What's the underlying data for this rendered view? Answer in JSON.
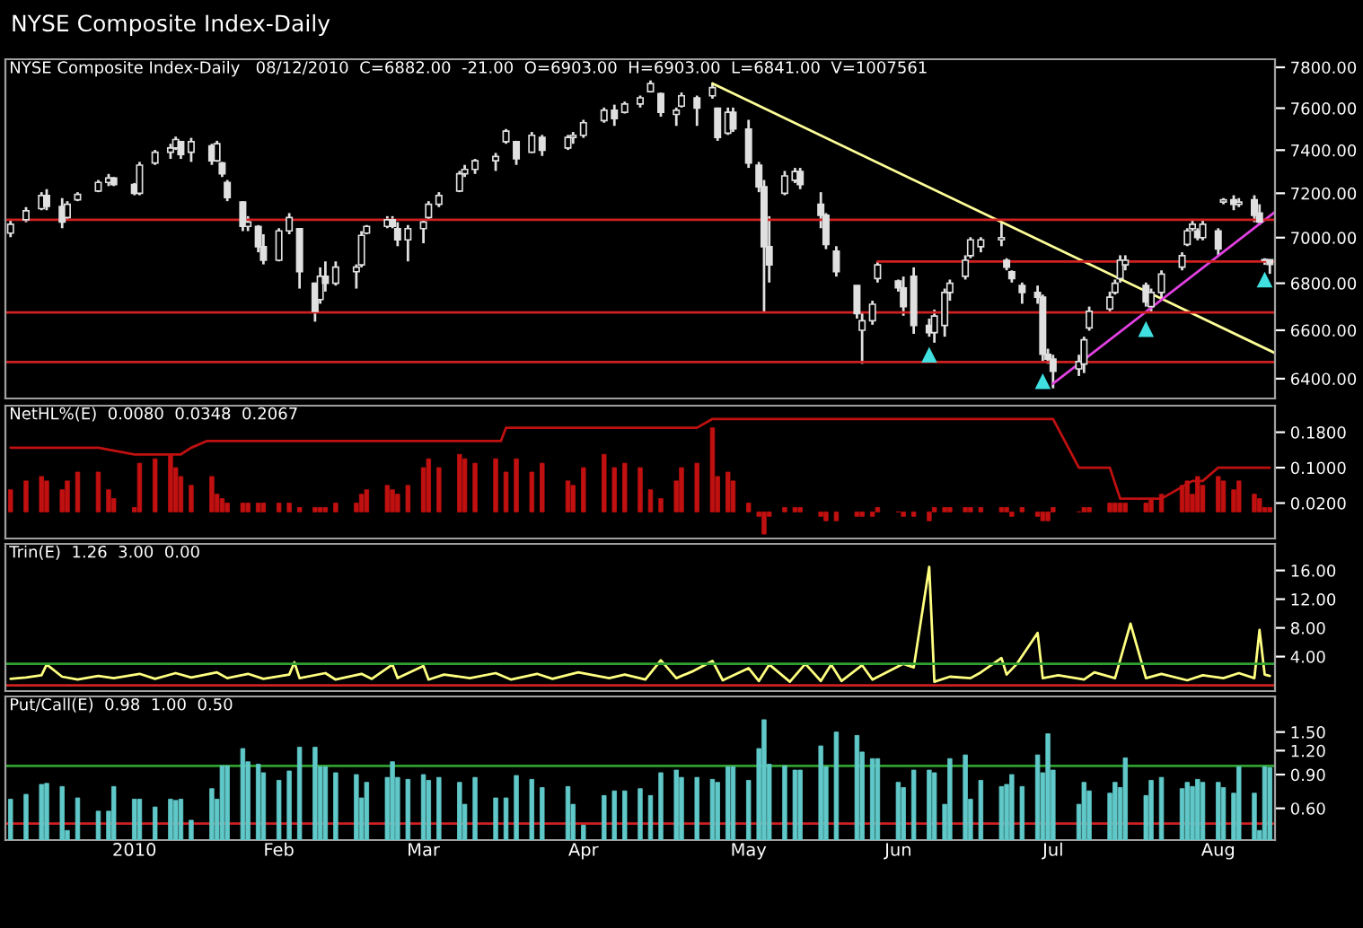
{
  "chart_data": [
    {
      "type": "candlestick",
      "title": "NYSE Composite Index-Daily",
      "subtitle": "NYSE Composite Index-Daily   08/12/2010  C=6882.00  -21.00  O=6903.00  H=6903.00  L=6841.00  V=1007561",
      "color": "#e0e0e0",
      "x": [
        "2009-12-11",
        "2009-12-14",
        "2009-12-17",
        "2009-12-18",
        "2009-12-21",
        "2009-12-22",
        "2009-12-24",
        "2009-12-28",
        "2009-12-30",
        "2009-12-31",
        "2010-01-04",
        "2010-01-05",
        "2010-01-08",
        "2010-01-11",
        "2010-01-12",
        "2010-01-13",
        "2010-01-15",
        "2010-01-19",
        "2010-01-20",
        "2010-01-21",
        "2010-01-22",
        "2010-01-25",
        "2010-01-26",
        "2010-01-28",
        "2010-01-29",
        "2010-02-01",
        "2010-02-03",
        "2010-02-05",
        "2010-02-08",
        "2010-02-09",
        "2010-02-10",
        "2010-02-12",
        "2010-02-16",
        "2010-02-17",
        "2010-02-18",
        "2010-02-22",
        "2010-02-23",
        "2010-02-24",
        "2010-02-26",
        "2010-03-01",
        "2010-03-02",
        "2010-03-04",
        "2010-03-08",
        "2010-03-09",
        "2010-03-11",
        "2010-03-15",
        "2010-03-17",
        "2010-03-19",
        "2010-03-22",
        "2010-03-24",
        "2010-03-29",
        "2010-03-30",
        "2010-04-01",
        "2010-04-05",
        "2010-04-07",
        "2010-04-09",
        "2010-04-12",
        "2010-04-14",
        "2010-04-16",
        "2010-04-19",
        "2010-04-20",
        "2010-04-23",
        "2010-04-26",
        "2010-04-27",
        "2010-04-29",
        "2010-04-30",
        "2010-05-03",
        "2010-05-05",
        "2010-05-06",
        "2010-05-07",
        "2010-05-10",
        "2010-05-12",
        "2010-05-13",
        "2010-05-17",
        "2010-05-18",
        "2010-05-20",
        "2010-05-24",
        "2010-05-25",
        "2010-05-27",
        "2010-05-28",
        "2010-06-01",
        "2010-06-02",
        "2010-06-04",
        "2010-06-07",
        "2010-06-08",
        "2010-06-10",
        "2010-06-11",
        "2010-06-14",
        "2010-06-15",
        "2010-06-17",
        "2010-06-21",
        "2010-06-22",
        "2010-06-23",
        "2010-06-25",
        "2010-06-28",
        "2010-06-29",
        "2010-06-30",
        "2010-07-01",
        "2010-07-06",
        "2010-07-07",
        "2010-07-08",
        "2010-07-12",
        "2010-07-13",
        "2010-07-14",
        "2010-07-15",
        "2010-07-19",
        "2010-07-20",
        "2010-07-22",
        "2010-07-26",
        "2010-07-27",
        "2010-07-28",
        "2010-07-29",
        "2010-07-30",
        "2010-08-02",
        "2010-08-03",
        "2010-08-05",
        "2010-08-06",
        "2010-08-09",
        "2010-08-10",
        "2010-08-11",
        "2010-08-12"
      ],
      "ohlc": [
        [
          7020,
          7083,
          7002,
          7060
        ],
        [
          7080,
          7137,
          7069,
          7120
        ],
        [
          7130,
          7205,
          7123,
          7190
        ],
        [
          7190,
          7219,
          7123,
          7140
        ],
        [
          7140,
          7178,
          7042,
          7070
        ],
        [
          7090,
          7164,
          7083,
          7150
        ],
        [
          7170,
          7205,
          7164,
          7195
        ],
        [
          7210,
          7261,
          7205,
          7250
        ],
        [
          7250,
          7289,
          7233,
          7270
        ],
        [
          7270,
          7275,
          7233,
          7240
        ],
        [
          7240,
          7247,
          7191,
          7200
        ],
        [
          7200,
          7345,
          7191,
          7330
        ],
        [
          7340,
          7401,
          7331,
          7390
        ],
        [
          7390,
          7430,
          7359,
          7410
        ],
        [
          7410,
          7464,
          7401,
          7450
        ],
        [
          7440,
          7444,
          7359,
          7380
        ],
        [
          7390,
          7458,
          7345,
          7440
        ],
        [
          7420,
          7430,
          7331,
          7350
        ],
        [
          7350,
          7444,
          7345,
          7430
        ],
        [
          7340,
          7345,
          7275,
          7290
        ],
        [
          7250,
          7261,
          7164,
          7180
        ],
        [
          7160,
          7164,
          7029,
          7050
        ],
        [
          7050,
          7096,
          7029,
          7070
        ],
        [
          7050,
          7056,
          6935,
          6960
        ],
        [
          6960,
          7015,
          6882,
          6900
        ],
        [
          6900,
          7042,
          6895,
          7030
        ],
        [
          7030,
          7110,
          7015,
          7090
        ],
        [
          7040,
          7042,
          6777,
          6850
        ],
        [
          6800,
          6803,
          6636,
          6680
        ],
        [
          6730,
          6869,
          6712,
          6830
        ],
        [
          6830,
          6895,
          6764,
          6800
        ],
        [
          6800,
          6895,
          6790,
          6870
        ],
        [
          6850,
          6882,
          6777,
          6870
        ],
        [
          6880,
          7029,
          6869,
          7010
        ],
        [
          7020,
          7056,
          7015,
          7050
        ],
        [
          7050,
          7096,
          7042,
          7080
        ],
        [
          7080,
          7096,
          7042,
          7050
        ],
        [
          7040,
          7069,
          6962,
          6990
        ],
        [
          6990,
          7056,
          6895,
          7040
        ],
        [
          7040,
          7083,
          6975,
          7070
        ],
        [
          7090,
          7164,
          7083,
          7150
        ],
        [
          7150,
          7205,
          7137,
          7190
        ],
        [
          7210,
          7303,
          7205,
          7290
        ],
        [
          7290,
          7331,
          7275,
          7310
        ],
        [
          7310,
          7359,
          7289,
          7350
        ],
        [
          7350,
          7387,
          7303,
          7370
        ],
        [
          7440,
          7500,
          7430,
          7490
        ],
        [
          7440,
          7444,
          7331,
          7360
        ],
        [
          7390,
          7486,
          7387,
          7470
        ],
        [
          7460,
          7472,
          7373,
          7400
        ],
        [
          7410,
          7472,
          7401,
          7460
        ],
        [
          7460,
          7486,
          7430,
          7470
        ],
        [
          7470,
          7544,
          7458,
          7530
        ],
        [
          7540,
          7603,
          7530,
          7590
        ],
        [
          7590,
          7617,
          7515,
          7550
        ],
        [
          7580,
          7632,
          7574,
          7620
        ],
        [
          7620,
          7661,
          7603,
          7650
        ],
        [
          7680,
          7735,
          7676,
          7720
        ],
        [
          7670,
          7676,
          7559,
          7580
        ],
        [
          7570,
          7603,
          7515,
          7590
        ],
        [
          7610,
          7676,
          7603,
          7660
        ],
        [
          7650,
          7661,
          7515,
          7600
        ],
        [
          7660,
          7720,
          7646,
          7700
        ],
        [
          7600,
          7603,
          7444,
          7460
        ],
        [
          7480,
          7603,
          7472,
          7580
        ],
        [
          7580,
          7603,
          7486,
          7500
        ],
        [
          7500,
          7544,
          7317,
          7340
        ],
        [
          7330,
          7345,
          7205,
          7230
        ],
        [
          7230,
          7261,
          6674,
          6960
        ],
        [
          6960,
          7096,
          6803,
          6880
        ],
        [
          7200,
          7303,
          7191,
          7280
        ],
        [
          7260,
          7317,
          7247,
          7300
        ],
        [
          7300,
          7317,
          7219,
          7240
        ],
        [
          7150,
          7205,
          7042,
          7100
        ],
        [
          7100,
          7110,
          6949,
          6970
        ],
        [
          6940,
          6962,
          6829,
          6850
        ],
        [
          6790,
          6790,
          6649,
          6670
        ],
        [
          6600,
          6674,
          6461,
          6640
        ],
        [
          6640,
          6725,
          6623,
          6710
        ],
        [
          6820,
          6895,
          6803,
          6880
        ],
        [
          6810,
          6816,
          6764,
          6780
        ],
        [
          6780,
          6829,
          6661,
          6700
        ],
        [
          6830,
          6869,
          6585,
          6620
        ],
        [
          6620,
          6649,
          6573,
          6590
        ],
        [
          6590,
          6687,
          6548,
          6660
        ],
        [
          6620,
          6777,
          6573,
          6760
        ],
        [
          6760,
          6816,
          6725,
          6800
        ],
        [
          6830,
          6922,
          6816,
          6900
        ],
        [
          6920,
          7002,
          6909,
          6990
        ],
        [
          6960,
          7002,
          6935,
          6990
        ],
        [
          6990,
          7069,
          6962,
          7000
        ],
        [
          6900,
          6909,
          6856,
          6870
        ],
        [
          6850,
          6856,
          6803,
          6820
        ],
        [
          6790,
          6803,
          6712,
          6760
        ],
        [
          6760,
          6790,
          6712,
          6740
        ],
        [
          6740,
          6751,
          6473,
          6500
        ],
        [
          6500,
          6523,
          6461,
          6480
        ],
        [
          6480,
          6498,
          6361,
          6430
        ],
        [
          6440,
          6498,
          6411,
          6470
        ],
        [
          6460,
          6573,
          6423,
          6560
        ],
        [
          6610,
          6700,
          6598,
          6680
        ],
        [
          6690,
          6764,
          6674,
          6740
        ],
        [
          6760,
          6816,
          6751,
          6800
        ],
        [
          6820,
          6922,
          6803,
          6900
        ],
        [
          6880,
          6922,
          6856,
          6900
        ],
        [
          6790,
          6803,
          6700,
          6720
        ],
        [
          6700,
          6777,
          6674,
          6760
        ],
        [
          6760,
          6856,
          6725,
          6840
        ],
        [
          6870,
          6935,
          6856,
          6920
        ],
        [
          6970,
          7042,
          6962,
          7030
        ],
        [
          7040,
          7083,
          7029,
          7060
        ],
        [
          7030,
          7042,
          6988,
          7000
        ],
        [
          7000,
          7083,
          6988,
          7060
        ],
        [
          7030,
          7042,
          6922,
          6950
        ],
        [
          7160,
          7178,
          7150,
          7170
        ],
        [
          7170,
          7191,
          7123,
          7150
        ],
        [
          7150,
          7178,
          7137,
          7160
        ],
        [
          7170,
          7191,
          7069,
          7100
        ],
        [
          7110,
          7150,
          7056,
          7070
        ],
        [
          6900,
          6909,
          6880,
          6903
        ],
        [
          6903,
          6903,
          6841,
          6882
        ]
      ],
      "series": [
        {
          "type": "line",
          "color": "#ffff99",
          "x": [
            "2010-04-26",
            "2010-08-13"
          ],
          "values": [
            7720,
            6505
          ]
        },
        {
          "type": "line",
          "color": "#e040e0",
          "x": [
            "2010-07-01",
            "2010-08-13"
          ],
          "values": [
            6380,
            7115
          ]
        },
        {
          "type": "line",
          "color": "#d02020",
          "x": [
            "2010-05-28",
            "2010-08-13"
          ],
          "values": [
            6895,
            6895
          ]
        },
        {
          "type": "scatter",
          "marker": "triangle",
          "color": "#40e0e0",
          "x": [
            "2010-06-07",
            "2010-06-29",
            "2010-07-19",
            "2010-08-11"
          ],
          "values": [
            6498,
            6390,
            6605,
            6816
          ]
        }
      ],
      "ref_lines": [
        {
          "axis": "y",
          "value": 7080,
          "color": "#d02020"
        },
        {
          "axis": "y",
          "value": 6675,
          "color": "#d02020"
        },
        {
          "axis": "y",
          "value": 6468,
          "color": "#d02020"
        }
      ],
      "log": "y",
      "xlim": [
        "2009-12-10",
        "2010-08-13"
      ],
      "ylim": [
        6320,
        7840
      ],
      "yticks": [
        {
          "value": 6400,
          "label": "6400.00"
        },
        {
          "value": 6600,
          "label": "6600.00"
        },
        {
          "value": 6800,
          "label": "6800.00"
        },
        {
          "value": 7000,
          "label": "7000.00"
        },
        {
          "value": 7200,
          "label": "7200.00"
        },
        {
          "value": 7400,
          "label": "7400.00"
        },
        {
          "value": 7600,
          "label": "7600.00"
        },
        {
          "value": 7800,
          "label": "7800.00"
        }
      ],
      "tick_labels": "y"
    },
    {
      "type": "bar",
      "title": "NetHL%(E)  0.0080  0.0348  0.2067",
      "x": [
        "2009-12-11",
        "2009-12-14",
        "2009-12-17",
        "2009-12-18",
        "2009-12-21",
        "2009-12-22",
        "2009-12-24",
        "2009-12-28",
        "2009-12-30",
        "2009-12-31",
        "2010-01-04",
        "2010-01-05",
        "2010-01-08",
        "2010-01-11",
        "2010-01-12",
        "2010-01-13",
        "2010-01-15",
        "2010-01-19",
        "2010-01-20",
        "2010-01-21",
        "2010-01-22",
        "2010-01-25",
        "2010-01-26",
        "2010-01-28",
        "2010-01-29",
        "2010-02-01",
        "2010-02-03",
        "2010-02-05",
        "2010-02-08",
        "2010-02-09",
        "2010-02-10",
        "2010-02-12",
        "2010-02-16",
        "2010-02-17",
        "2010-02-18",
        "2010-02-22",
        "2010-02-23",
        "2010-02-24",
        "2010-02-26",
        "2010-03-01",
        "2010-03-02",
        "2010-03-04",
        "2010-03-08",
        "2010-03-09",
        "2010-03-11",
        "2010-03-15",
        "2010-03-17",
        "2010-03-19",
        "2010-03-22",
        "2010-03-24",
        "2010-03-29",
        "2010-03-30",
        "2010-04-01",
        "2010-04-05",
        "2010-04-07",
        "2010-04-09",
        "2010-04-12",
        "2010-04-14",
        "2010-04-16",
        "2010-04-19",
        "2010-04-20",
        "2010-04-23",
        "2010-04-26",
        "2010-04-27",
        "2010-04-29",
        "2010-04-30",
        "2010-05-03",
        "2010-05-05",
        "2010-05-06",
        "2010-05-07",
        "2010-05-10",
        "2010-05-12",
        "2010-05-13",
        "2010-05-17",
        "2010-05-18",
        "2010-05-20",
        "2010-05-24",
        "2010-05-25",
        "2010-05-27",
        "2010-05-28",
        "2010-06-01",
        "2010-06-02",
        "2010-06-04",
        "2010-06-07",
        "2010-06-08",
        "2010-06-10",
        "2010-06-11",
        "2010-06-14",
        "2010-06-15",
        "2010-06-17",
        "2010-06-21",
        "2010-06-22",
        "2010-06-23",
        "2010-06-25",
        "2010-06-28",
        "2010-06-29",
        "2010-06-30",
        "2010-07-01",
        "2010-07-06",
        "2010-07-07",
        "2010-07-08",
        "2010-07-12",
        "2010-07-13",
        "2010-07-14",
        "2010-07-15",
        "2010-07-19",
        "2010-07-20",
        "2010-07-22",
        "2010-07-26",
        "2010-07-27",
        "2010-07-28",
        "2010-07-29",
        "2010-07-30",
        "2010-08-02",
        "2010-08-03",
        "2010-08-05",
        "2010-08-06",
        "2010-08-09",
        "2010-08-10",
        "2010-08-11",
        "2010-08-12"
      ],
      "series": [
        {
          "color": "#c01010",
          "values": [
            0.05,
            0.07,
            0.08,
            0.07,
            0.05,
            0.07,
            0.09,
            0.09,
            0.05,
            0.03,
            0.01,
            0.11,
            0.12,
            0.13,
            0.1,
            0.08,
            0.06,
            0.08,
            0.04,
            0.03,
            0.02,
            0.02,
            0.02,
            0.02,
            0.02,
            0.02,
            0.02,
            0.01,
            0.01,
            0.01,
            0.01,
            0.02,
            0.02,
            0.04,
            0.05,
            0.06,
            0.05,
            0.04,
            0.06,
            0.1,
            0.12,
            0.1,
            0.13,
            0.12,
            0.11,
            0.12,
            0.09,
            0.12,
            0.09,
            0.11,
            0.07,
            0.06,
            0.1,
            0.13,
            0.1,
            0.11,
            0.1,
            0.05,
            0.03,
            0.07,
            0.1,
            0.11,
            0.19,
            0.08,
            0.09,
            0.07,
            0.02,
            -0.01,
            -0.05,
            -0.01,
            0.01,
            0.01,
            0.01,
            -0.01,
            -0.02,
            -0.02,
            -0.01,
            -0.01,
            -0.01,
            0.01,
            0.0,
            -0.01,
            -0.01,
            -0.02,
            0.01,
            0.01,
            0.01,
            0.01,
            0.01,
            0.01,
            0.01,
            0.01,
            -0.01,
            0.01,
            -0.01,
            -0.02,
            -0.02,
            0.01,
            0.0,
            0.01,
            0.01,
            0.02,
            0.02,
            0.02,
            0.02,
            0.02,
            0.03,
            0.04,
            0.06,
            0.07,
            0.04,
            0.08,
            0.06,
            0.08,
            0.07,
            0.05,
            0.07,
            0.04,
            0.03,
            0.01,
            0.01
          ]
        },
        {
          "type": "line",
          "color": "#c01010",
          "x": [
            "2009-12-11",
            "2009-12-28",
            "2010-01-04",
            "2010-01-13",
            "2010-01-15",
            "2010-01-18",
            "2010-03-16",
            "2010-03-17",
            "2010-04-23",
            "2010-04-26",
            "2010-07-01",
            "2010-07-06",
            "2010-07-12",
            "2010-07-14",
            "2010-07-22",
            "2010-07-28",
            "2010-07-30",
            "2010-08-02",
            "2010-08-12"
          ],
          "values": [
            0.145,
            0.145,
            0.13,
            0.13,
            0.145,
            0.16,
            0.16,
            0.19,
            0.19,
            0.21,
            0.21,
            0.1,
            0.1,
            0.03,
            0.03,
            0.07,
            0.07,
            0.1,
            0.1
          ]
        }
      ],
      "xlim": [
        "2009-12-10",
        "2010-08-13"
      ],
      "ylim": [
        -0.06,
        0.24
      ],
      "yticks": [
        {
          "value": 0.02,
          "label": "0.0200"
        },
        {
          "value": 0.1,
          "label": "0.1000"
        },
        {
          "value": 0.18,
          "label": "0.1800"
        }
      ],
      "tick_labels": "y"
    },
    {
      "type": "line",
      "title": "Trin(E)  1.26  3.00  0.00",
      "series": [
        {
          "color": "#ffff80",
          "x": [
            "2009-12-11",
            "2009-12-14",
            "2009-12-17",
            "2009-12-18",
            "2009-12-21",
            "2009-12-24",
            "2009-12-28",
            "2009-12-31",
            "2010-01-05",
            "2010-01-08",
            "2010-01-12",
            "2010-01-15",
            "2010-01-20",
            "2010-01-22",
            "2010-01-26",
            "2010-01-29",
            "2010-02-03",
            "2010-02-04",
            "2010-02-05",
            "2010-02-10",
            "2010-02-12",
            "2010-02-17",
            "2010-02-19",
            "2010-02-23",
            "2010-02-24",
            "2010-03-01",
            "2010-03-02",
            "2010-03-05",
            "2010-03-10",
            "2010-03-15",
            "2010-03-18",
            "2010-03-23",
            "2010-03-26",
            "2010-03-31",
            "2010-04-06",
            "2010-04-09",
            "2010-04-13",
            "2010-04-16",
            "2010-04-19",
            "2010-04-22",
            "2010-04-26",
            "2010-04-28",
            "2010-05-03",
            "2010-05-05",
            "2010-05-07",
            "2010-05-11",
            "2010-05-14",
            "2010-05-17",
            "2010-05-19",
            "2010-05-21",
            "2010-05-25",
            "2010-05-27",
            "2010-06-02",
            "2010-06-04",
            "2010-06-07",
            "2010-06-08",
            "2010-06-11",
            "2010-06-15",
            "2010-06-17",
            "2010-06-21",
            "2010-06-22",
            "2010-06-24",
            "2010-06-28",
            "2010-06-29",
            "2010-07-02",
            "2010-07-07",
            "2010-07-09",
            "2010-07-13",
            "2010-07-16",
            "2010-07-19",
            "2010-07-22",
            "2010-07-27",
            "2010-07-30",
            "2010-08-03",
            "2010-08-06",
            "2010-08-09",
            "2010-08-10",
            "2010-08-11",
            "2010-08-12"
          ],
          "values": [
            0.9,
            1.1,
            1.4,
            2.9,
            1.2,
            0.8,
            1.3,
            1.0,
            1.6,
            0.9,
            1.7,
            1.1,
            1.8,
            1.0,
            1.6,
            0.9,
            1.5,
            3.2,
            1.0,
            1.7,
            0.8,
            1.6,
            0.9,
            2.9,
            1.0,
            2.7,
            0.8,
            1.5,
            1.0,
            1.7,
            0.8,
            1.6,
            0.9,
            1.8,
            1.0,
            1.5,
            0.8,
            3.5,
            1.0,
            1.9,
            3.4,
            0.7,
            2.4,
            0.6,
            2.9,
            0.5,
            3.0,
            0.6,
            2.9,
            0.6,
            2.8,
            0.8,
            3.0,
            2.5,
            16.5,
            0.5,
            1.2,
            1.0,
            1.8,
            3.8,
            1.5,
            3.0,
            7.3,
            1.0,
            1.4,
            0.8,
            1.8,
            1.0,
            8.6,
            1.0,
            1.6,
            0.7,
            1.4,
            1.0,
            1.7,
            1.0,
            7.7,
            1.5,
            1.3
          ]
        }
      ],
      "ref_lines": [
        {
          "axis": "y",
          "value": 3.0,
          "color": "#30a030"
        },
        {
          "axis": "y",
          "value": 0.0,
          "color": "#d02020"
        }
      ],
      "xlim": [
        "2009-12-10",
        "2010-08-13"
      ],
      "ylim": [
        -0.8,
        19.7
      ],
      "yticks": [
        {
          "value": 4,
          "label": "4.00"
        },
        {
          "value": 8,
          "label": "8.00"
        },
        {
          "value": 12,
          "label": "12.00"
        },
        {
          "value": 16,
          "label": "16.00"
        }
      ],
      "tick_labels": "y"
    },
    {
      "type": "bar",
      "title": "Put/Call(E)  0.98  1.00  0.50",
      "x": [
        "2009-12-11",
        "2009-12-14",
        "2009-12-17",
        "2009-12-18",
        "2009-12-21",
        "2009-12-22",
        "2009-12-24",
        "2009-12-28",
        "2009-12-30",
        "2009-12-31",
        "2010-01-04",
        "2010-01-05",
        "2010-01-08",
        "2010-01-11",
        "2010-01-12",
        "2010-01-13",
        "2010-01-15",
        "2010-01-19",
        "2010-01-20",
        "2010-01-21",
        "2010-01-22",
        "2010-01-25",
        "2010-01-26",
        "2010-01-28",
        "2010-01-29",
        "2010-02-01",
        "2010-02-03",
        "2010-02-05",
        "2010-02-08",
        "2010-02-09",
        "2010-02-10",
        "2010-02-12",
        "2010-02-16",
        "2010-02-17",
        "2010-02-18",
        "2010-02-22",
        "2010-02-23",
        "2010-02-24",
        "2010-02-26",
        "2010-03-01",
        "2010-03-02",
        "2010-03-04",
        "2010-03-08",
        "2010-03-09",
        "2010-03-11",
        "2010-03-15",
        "2010-03-17",
        "2010-03-19",
        "2010-03-22",
        "2010-03-24",
        "2010-03-29",
        "2010-03-30",
        "2010-04-01",
        "2010-04-05",
        "2010-04-07",
        "2010-04-09",
        "2010-04-12",
        "2010-04-14",
        "2010-04-16",
        "2010-04-19",
        "2010-04-20",
        "2010-04-23",
        "2010-04-26",
        "2010-04-27",
        "2010-04-29",
        "2010-04-30",
        "2010-05-03",
        "2010-05-05",
        "2010-05-06",
        "2010-05-07",
        "2010-05-10",
        "2010-05-12",
        "2010-05-13",
        "2010-05-17",
        "2010-05-18",
        "2010-05-20",
        "2010-05-24",
        "2010-05-25",
        "2010-05-27",
        "2010-05-28",
        "2010-06-01",
        "2010-06-02",
        "2010-06-04",
        "2010-06-07",
        "2010-06-08",
        "2010-06-10",
        "2010-06-11",
        "2010-06-14",
        "2010-06-15",
        "2010-06-17",
        "2010-06-21",
        "2010-06-22",
        "2010-06-23",
        "2010-06-25",
        "2010-06-28",
        "2010-06-29",
        "2010-06-30",
        "2010-07-01",
        "2010-07-06",
        "2010-07-07",
        "2010-07-08",
        "2010-07-12",
        "2010-07-13",
        "2010-07-14",
        "2010-07-15",
        "2010-07-19",
        "2010-07-20",
        "2010-07-22",
        "2010-07-26",
        "2010-07-27",
        "2010-07-28",
        "2010-07-29",
        "2010-07-30",
        "2010-08-02",
        "2010-08-03",
        "2010-08-05",
        "2010-08-06",
        "2010-08-09",
        "2010-08-10",
        "2010-08-11",
        "2010-08-12"
      ],
      "series": [
        {
          "color": "#60c8c8",
          "values": [
            0.67,
            0.71,
            0.8,
            0.81,
            0.78,
            0.46,
            0.68,
            0.58,
            0.58,
            0.78,
            0.67,
            0.67,
            0.61,
            0.67,
            0.66,
            0.67,
            0.52,
            0.76,
            0.67,
            1.0,
            1.0,
            1.23,
            1.05,
            1.02,
            0.92,
            0.84,
            0.94,
            1.25,
            1.25,
            0.99,
            0.99,
            0.92,
            0.9,
            0.68,
            0.82,
            0.87,
            1.05,
            0.87,
            0.85,
            0.9,
            0.84,
            0.87,
            0.82,
            0.63,
            0.87,
            0.68,
            0.68,
            0.89,
            0.85,
            0.77,
            0.78,
            0.63,
            0.49,
            0.7,
            0.74,
            0.74,
            0.76,
            0.7,
            0.92,
            0.95,
            0.87,
            0.87,
            0.85,
            0.82,
            0.99,
            0.99,
            0.84,
            1.23,
            1.74,
            1.02,
            1.0,
            0.95,
            0.95,
            1.27,
            0.99,
            1.5,
            1.44,
            1.18,
            1.09,
            1.09,
            0.82,
            0.77,
            0.95,
            0.95,
            0.92,
            0.63,
            1.09,
            1.14,
            0.67,
            0.84,
            0.78,
            0.8,
            0.9,
            0.78,
            1.14,
            0.92,
            1.47,
            0.95,
            0.63,
            0.82,
            0.74,
            0.72,
            0.82,
            0.77,
            1.1,
            0.7,
            0.84,
            0.87,
            0.76,
            0.82,
            0.78,
            0.85,
            0.82,
            0.82,
            0.77,
            0.72,
            0.99,
            0.72,
            0.46,
            0.99,
            0.98
          ]
        }
      ],
      "ref_lines": [
        {
          "axis": "y",
          "value": 1.0,
          "color": "#30a030"
        },
        {
          "axis": "y",
          "value": 0.5,
          "color": "#d02020"
        }
      ],
      "log": "y",
      "xlim": [
        "2009-12-10",
        "2010-08-13"
      ],
      "ylim": [
        0.41,
        2.3
      ],
      "yticks": [
        {
          "value": 0.6,
          "label": "0.60"
        },
        {
          "value": 0.9,
          "label": "0.90"
        },
        {
          "value": 1.2,
          "label": "1.20"
        },
        {
          "value": 1.5,
          "label": "1.50"
        }
      ],
      "xticks": [
        {
          "value": "2010-01-04",
          "label": "2010"
        },
        {
          "value": "2010-02-01",
          "label": "Feb"
        },
        {
          "value": "2010-03-01",
          "label": "Mar"
        },
        {
          "value": "2010-04-01",
          "label": "Apr"
        },
        {
          "value": "2010-05-03",
          "label": "May"
        },
        {
          "value": "2010-06-01",
          "label": "Jun"
        },
        {
          "value": "2010-07-01",
          "label": "Jul"
        },
        {
          "value": "2010-08-02",
          "label": "Aug"
        }
      ]
    }
  ]
}
